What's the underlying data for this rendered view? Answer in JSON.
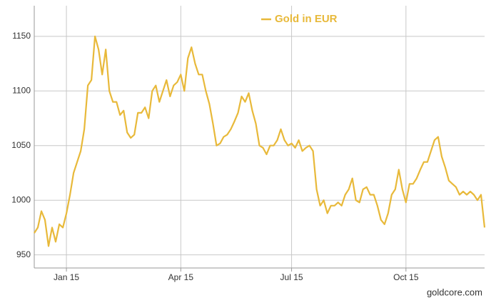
{
  "chart_data": {
    "type": "line",
    "source": "goldcore.com",
    "categories": [
      null,
      null,
      null,
      null,
      null,
      null,
      null,
      null,
      null,
      "Jan 15",
      null,
      null,
      null,
      null,
      null,
      null,
      null,
      null,
      null,
      null,
      null,
      null,
      null,
      null,
      null,
      null,
      null,
      null,
      null,
      null,
      null,
      null,
      null,
      null,
      null,
      null,
      null,
      null,
      null,
      null,
      null,
      "Apr 15",
      null,
      null,
      null,
      null,
      null,
      null,
      null,
      null,
      null,
      null,
      null,
      null,
      null,
      null,
      null,
      null,
      null,
      null,
      null,
      null,
      null,
      null,
      null,
      null,
      null,
      null,
      null,
      null,
      null,
      null,
      "Jul 15",
      null,
      null,
      null,
      null,
      null,
      null,
      null,
      null,
      null,
      null,
      null,
      null,
      null,
      null,
      null,
      null,
      null,
      null,
      null,
      null,
      null,
      null,
      null,
      null,
      null,
      null,
      null,
      null,
      null,
      null,
      null,
      "Oct 15",
      null,
      null,
      null,
      null,
      null,
      null,
      null,
      null,
      null,
      null,
      null,
      null,
      null,
      null,
      null,
      null,
      null,
      null,
      null,
      null,
      null,
      null
    ],
    "series": [
      {
        "name": "Gold in EUR",
        "color": "#e8b93a",
        "values": [
          970,
          975,
          990,
          982,
          958,
          975,
          962,
          978,
          975,
          988,
          1005,
          1025,
          1035,
          1045,
          1065,
          1105,
          1110,
          1150,
          1138,
          1115,
          1138,
          1100,
          1090,
          1090,
          1078,
          1082,
          1062,
          1057,
          1060,
          1080,
          1080,
          1085,
          1075,
          1100,
          1105,
          1090,
          1100,
          1110,
          1095,
          1105,
          1108,
          1115,
          1100,
          1130,
          1140,
          1125,
          1115,
          1115,
          1100,
          1088,
          1070,
          1050,
          1052,
          1058,
          1060,
          1065,
          1072,
          1080,
          1095,
          1090,
          1098,
          1082,
          1070,
          1050,
          1048,
          1042,
          1050,
          1050,
          1055,
          1065,
          1055,
          1050,
          1052,
          1048,
          1055,
          1045,
          1048,
          1050,
          1045,
          1010,
          995,
          1000,
          988,
          995,
          995,
          998,
          995,
          1005,
          1010,
          1020,
          1000,
          998,
          1010,
          1012,
          1005,
          1005,
          995,
          982,
          978,
          988,
          1005,
          1010,
          1028,
          1010,
          998,
          1015,
          1015,
          1020,
          1028,
          1035,
          1035,
          1045,
          1055,
          1058,
          1040,
          1030,
          1018,
          1015,
          1012,
          1005,
          1008,
          1005,
          1008,
          1005,
          1000,
          1005,
          975
        ]
      }
    ],
    "ylim": [
      938,
      1178
    ],
    "yticks": [
      950,
      1000,
      1050,
      1100,
      1150
    ],
    "grid": true,
    "legend": "top"
  }
}
